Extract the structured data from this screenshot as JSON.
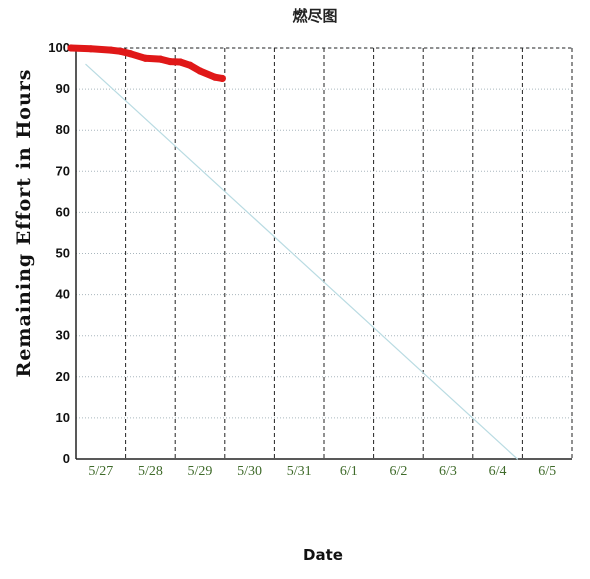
{
  "chart_data": {
    "type": "line",
    "title": "燃尽图",
    "xlabel": "Date",
    "ylabel": "Remaining Effort in Hours",
    "categories": [
      "5/27",
      "5/28",
      "5/29",
      "5/30",
      "5/31",
      "6/1",
      "6/2",
      "6/3",
      "6/4",
      "6/5"
    ],
    "yticks": [
      0,
      10,
      20,
      30,
      40,
      50,
      60,
      70,
      80,
      90,
      100
    ],
    "ylim": [
      0,
      100
    ],
    "grid": true,
    "series": [
      {
        "color": "#b9dbe2",
        "points": [
          [
            0.2,
            96
          ],
          [
            8.9,
            0
          ]
        ]
      },
      {
        "color": "#e01818",
        "points": [
          [
            -0.1,
            100
          ],
          [
            0.3,
            99.8
          ],
          [
            0.7,
            99.5
          ],
          [
            0.9,
            99.2
          ],
          [
            1.1,
            98.6
          ],
          [
            1.4,
            97.5
          ],
          [
            1.7,
            97.3
          ],
          [
            1.9,
            96.7
          ],
          [
            2.1,
            96.6
          ],
          [
            2.3,
            95.8
          ],
          [
            2.5,
            94.4
          ],
          [
            2.8,
            92.9
          ],
          [
            2.95,
            92.6
          ]
        ]
      }
    ]
  }
}
